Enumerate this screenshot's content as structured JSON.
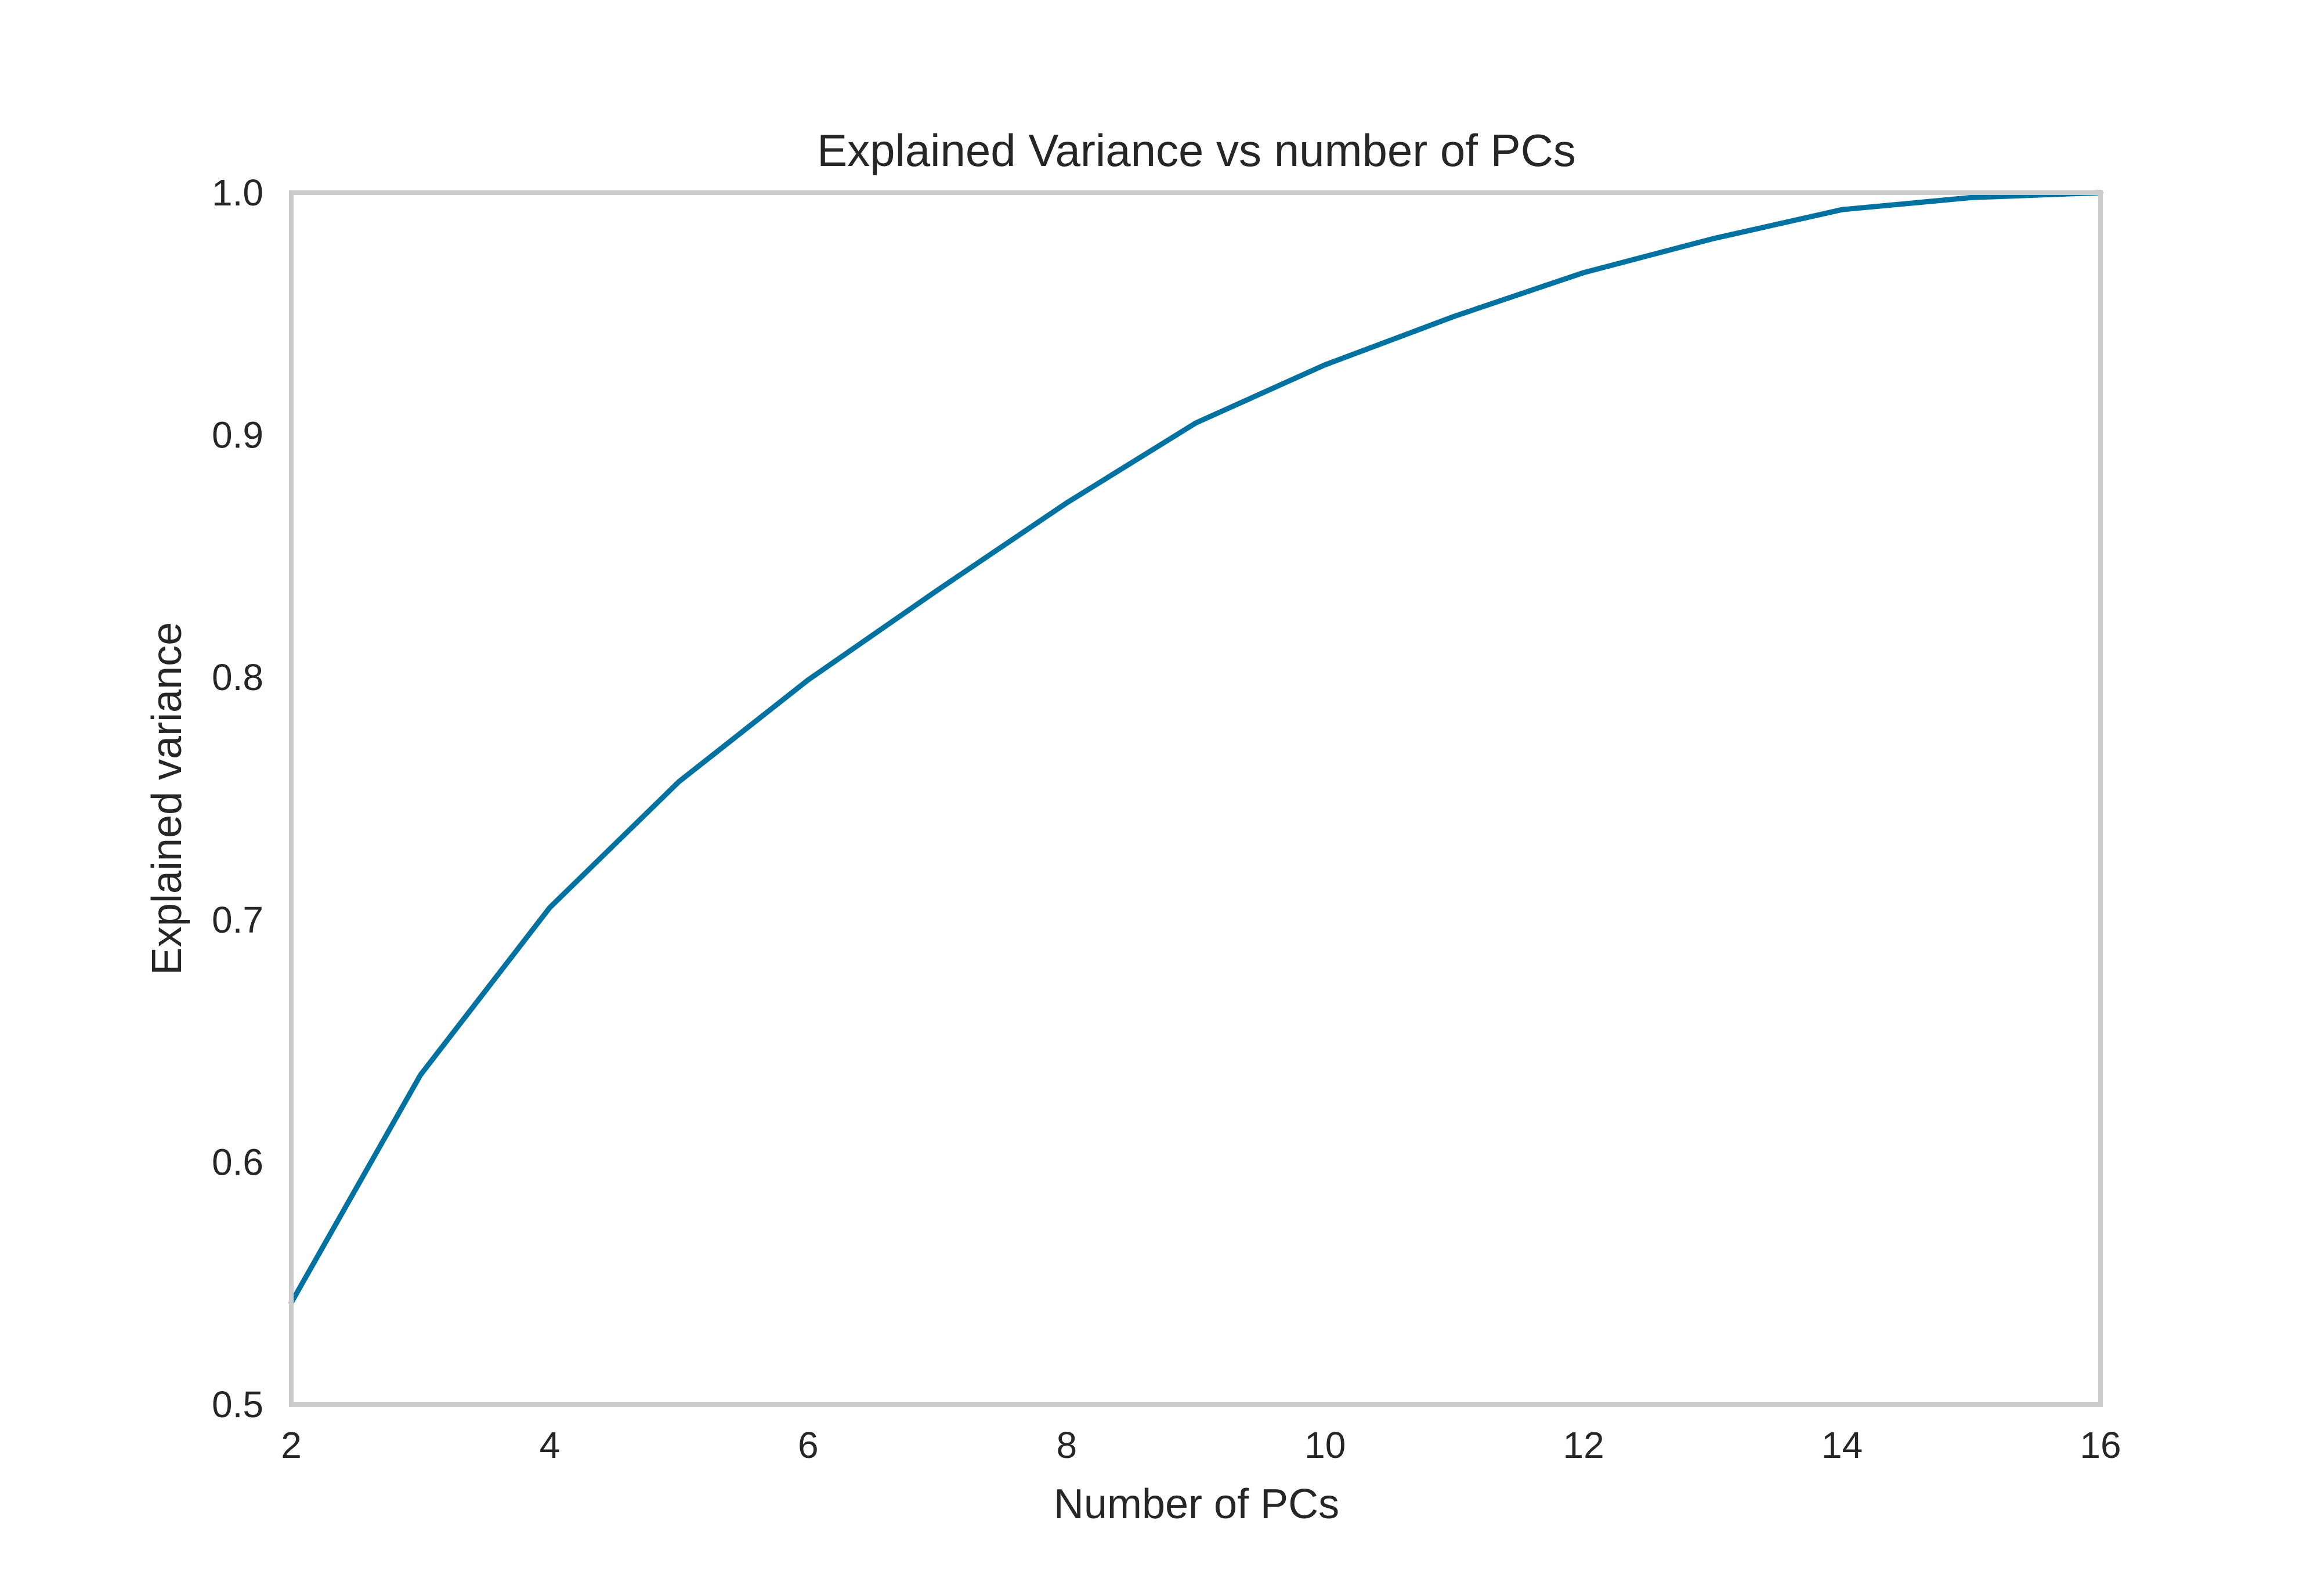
{
  "chart_data": {
    "type": "line",
    "title": "Explained Variance vs number of PCs",
    "xlabel": "Number of PCs",
    "ylabel": "Explained variance",
    "xlim": [
      2,
      16
    ],
    "ylim": [
      0.5,
      1.0
    ],
    "xticks": [
      "2",
      "4",
      "6",
      "8",
      "10",
      "12",
      "14",
      "16"
    ],
    "yticks": [
      "0.5",
      "0.6",
      "0.7",
      "0.8",
      "0.9",
      "1.0"
    ],
    "grid": false,
    "series": [
      {
        "color": "#0072a2",
        "x": [
          2,
          3,
          4,
          5,
          6,
          7,
          8,
          9,
          10,
          11,
          12,
          13,
          14,
          15,
          16
        ],
        "y": [
          0.542,
          0.636,
          0.705,
          0.757,
          0.799,
          0.836,
          0.872,
          0.905,
          0.929,
          0.949,
          0.967,
          0.981,
          0.993,
          0.998,
          1.0
        ]
      }
    ]
  }
}
